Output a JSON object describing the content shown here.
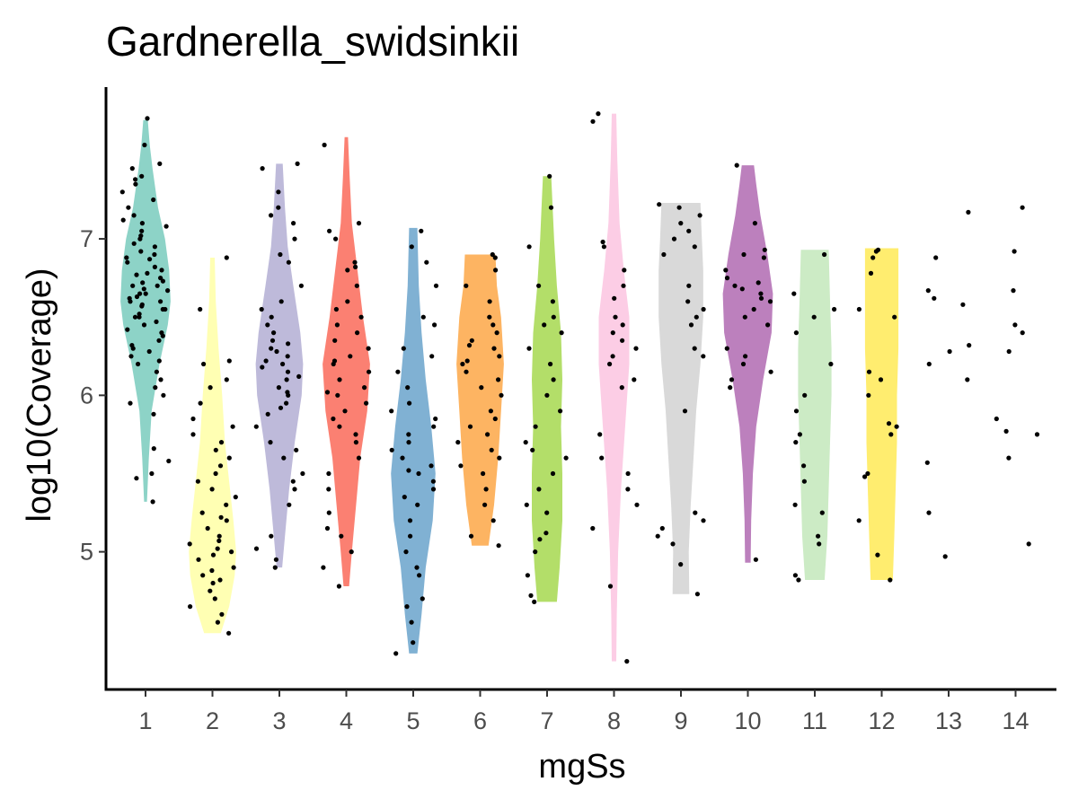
{
  "chart_data": {
    "type": "violin",
    "title": "Gardnerella_swidsinkii",
    "xlabel": "mgSs",
    "ylabel": "log10(Coverage)",
    "ylim": [
      4.12,
      7.97
    ],
    "yticks": [
      5,
      6,
      7
    ],
    "grid": false,
    "legend": "none",
    "categories": [
      "1",
      "2",
      "3",
      "4",
      "5",
      "6",
      "7",
      "8",
      "9",
      "10",
      "11",
      "12",
      "13",
      "14"
    ],
    "series": [
      {
        "category": "1",
        "color": "#8DD3C7",
        "violin": true,
        "profile": [
          [
            5.32,
            0.05
          ],
          [
            5.6,
            0.12
          ],
          [
            5.9,
            0.22
          ],
          [
            6.2,
            0.5
          ],
          [
            6.45,
            0.8
          ],
          [
            6.6,
            0.9
          ],
          [
            6.8,
            0.85
          ],
          [
            7.0,
            0.7
          ],
          [
            7.2,
            0.45
          ],
          [
            7.45,
            0.25
          ],
          [
            7.6,
            0.15
          ],
          [
            7.76,
            0.08
          ]
        ],
        "points": [
          5.32,
          5.47,
          5.5,
          5.58,
          5.66,
          5.88,
          5.95,
          6.0,
          6.05,
          6.1,
          6.15,
          6.2,
          6.22,
          6.25,
          6.28,
          6.3,
          6.32,
          6.35,
          6.38,
          6.4,
          6.42,
          6.45,
          6.47,
          6.5,
          6.5,
          6.52,
          6.55,
          6.55,
          6.57,
          6.58,
          6.6,
          6.6,
          6.62,
          6.63,
          6.65,
          6.65,
          6.67,
          6.68,
          6.7,
          6.7,
          6.72,
          6.73,
          6.75,
          6.77,
          6.78,
          6.8,
          6.82,
          6.85,
          6.87,
          6.88,
          6.9,
          6.92,
          6.95,
          6.97,
          7.0,
          7.02,
          7.05,
          7.08,
          7.1,
          7.12,
          7.15,
          7.2,
          7.25,
          7.3,
          7.35,
          7.38,
          7.4,
          7.45,
          7.48,
          7.6,
          7.77
        ]
      },
      {
        "category": "2",
        "color": "#FFFFB3",
        "violin": true,
        "profile": [
          [
            4.48,
            0.3
          ],
          [
            4.65,
            0.6
          ],
          [
            4.85,
            0.8
          ],
          [
            5.0,
            0.85
          ],
          [
            5.2,
            0.75
          ],
          [
            5.45,
            0.6
          ],
          [
            5.7,
            0.45
          ],
          [
            6.0,
            0.35
          ],
          [
            6.3,
            0.22
          ],
          [
            6.6,
            0.12
          ],
          [
            6.88,
            0.08
          ]
        ],
        "points": [
          4.48,
          4.55,
          4.6,
          4.65,
          4.7,
          4.75,
          4.8,
          4.82,
          4.85,
          4.88,
          4.9,
          4.95,
          4.98,
          5.0,
          5.02,
          5.05,
          5.07,
          5.1,
          5.15,
          5.2,
          5.22,
          5.25,
          5.3,
          5.35,
          5.4,
          5.45,
          5.5,
          5.55,
          5.6,
          5.65,
          5.7,
          5.75,
          5.8,
          5.85,
          5.95,
          6.05,
          6.1,
          6.2,
          6.22,
          6.55,
          6.88
        ]
      },
      {
        "category": "3",
        "color": "#BEBADA",
        "violin": true,
        "profile": [
          [
            4.9,
            0.1
          ],
          [
            5.1,
            0.2
          ],
          [
            5.4,
            0.35
          ],
          [
            5.7,
            0.55
          ],
          [
            6.0,
            0.8
          ],
          [
            6.2,
            0.85
          ],
          [
            6.4,
            0.75
          ],
          [
            6.7,
            0.5
          ],
          [
            6.95,
            0.3
          ],
          [
            7.2,
            0.2
          ],
          [
            7.48,
            0.12
          ]
        ],
        "points": [
          4.9,
          4.95,
          5.02,
          5.1,
          5.3,
          5.4,
          5.45,
          5.5,
          5.6,
          5.65,
          5.7,
          5.8,
          5.88,
          5.92,
          5.95,
          6.0,
          6.02,
          6.05,
          6.1,
          6.12,
          6.15,
          6.18,
          6.2,
          6.22,
          6.25,
          6.28,
          6.3,
          6.33,
          6.35,
          6.4,
          6.45,
          6.5,
          6.55,
          6.6,
          6.7,
          6.85,
          6.9,
          7.0,
          7.1,
          7.15,
          7.2,
          7.3,
          7.45,
          7.48
        ]
      },
      {
        "category": "4",
        "color": "#FB8072",
        "violin": true,
        "profile": [
          [
            4.78,
            0.1
          ],
          [
            5.0,
            0.2
          ],
          [
            5.3,
            0.35
          ],
          [
            5.6,
            0.5
          ],
          [
            5.9,
            0.75
          ],
          [
            6.2,
            0.85
          ],
          [
            6.5,
            0.6
          ],
          [
            6.8,
            0.4
          ],
          [
            7.1,
            0.2
          ],
          [
            7.4,
            0.12
          ],
          [
            7.65,
            0.06
          ]
        ],
        "points": [
          4.78,
          4.9,
          5.0,
          5.1,
          5.15,
          5.25,
          5.4,
          5.5,
          5.6,
          5.7,
          5.75,
          5.8,
          5.85,
          5.9,
          5.95,
          6.0,
          6.02,
          6.05,
          6.1,
          6.15,
          6.2,
          6.22,
          6.25,
          6.3,
          6.35,
          6.4,
          6.45,
          6.5,
          6.55,
          6.6,
          6.7,
          6.8,
          6.82,
          6.85,
          7.0,
          7.05,
          7.1,
          7.6
        ]
      },
      {
        "category": "5",
        "color": "#80B1D3",
        "violin": true,
        "profile": [
          [
            4.35,
            0.15
          ],
          [
            4.6,
            0.3
          ],
          [
            4.9,
            0.45
          ],
          [
            5.2,
            0.7
          ],
          [
            5.5,
            0.8
          ],
          [
            5.8,
            0.65
          ],
          [
            6.1,
            0.45
          ],
          [
            6.4,
            0.3
          ],
          [
            6.7,
            0.2
          ],
          [
            7.07,
            0.15
          ]
        ],
        "points": [
          4.35,
          4.42,
          4.55,
          4.65,
          4.7,
          4.85,
          4.9,
          5.0,
          5.1,
          5.2,
          5.3,
          5.35,
          5.4,
          5.45,
          5.5,
          5.52,
          5.55,
          5.6,
          5.65,
          5.7,
          5.75,
          5.8,
          5.85,
          5.9,
          5.95,
          6.05,
          6.15,
          6.25,
          6.3,
          6.45,
          6.5,
          6.7,
          6.85,
          6.95,
          7.05
        ]
      },
      {
        "category": "6",
        "color": "#FDB462",
        "violin": true,
        "profile": [
          [
            5.04,
            0.3
          ],
          [
            5.3,
            0.5
          ],
          [
            5.6,
            0.65
          ],
          [
            5.9,
            0.75
          ],
          [
            6.2,
            0.85
          ],
          [
            6.5,
            0.75
          ],
          [
            6.7,
            0.6
          ],
          [
            6.9,
            0.55
          ]
        ],
        "points": [
          5.04,
          5.1,
          5.2,
          5.3,
          5.4,
          5.5,
          5.55,
          5.6,
          5.65,
          5.7,
          5.75,
          5.8,
          5.85,
          5.9,
          6.0,
          6.05,
          6.1,
          6.15,
          6.2,
          6.22,
          6.25,
          6.3,
          6.32,
          6.35,
          6.4,
          6.45,
          6.5,
          6.6,
          6.7,
          6.8,
          6.88,
          6.9
        ]
      },
      {
        "category": "7",
        "color": "#B3DE69",
        "violin": true,
        "profile": [
          [
            4.68,
            0.35
          ],
          [
            4.9,
            0.45
          ],
          [
            5.2,
            0.55
          ],
          [
            5.5,
            0.55
          ],
          [
            5.8,
            0.5
          ],
          [
            6.1,
            0.55
          ],
          [
            6.4,
            0.5
          ],
          [
            6.7,
            0.35
          ],
          [
            7.0,
            0.25
          ],
          [
            7.2,
            0.2
          ],
          [
            7.4,
            0.15
          ]
        ],
        "points": [
          4.68,
          4.72,
          4.85,
          5.0,
          5.08,
          5.12,
          5.25,
          5.3,
          5.4,
          5.5,
          5.6,
          5.65,
          5.7,
          5.8,
          5.9,
          6.0,
          6.1,
          6.2,
          6.3,
          6.4,
          6.45,
          6.5,
          6.6,
          6.7,
          6.95,
          7.2,
          7.4
        ]
      },
      {
        "category": "8",
        "color": "#FCCDE5",
        "violin": true,
        "profile": [
          [
            4.3,
            0.08
          ],
          [
            4.6,
            0.1
          ],
          [
            5.0,
            0.15
          ],
          [
            5.4,
            0.25
          ],
          [
            5.8,
            0.4
          ],
          [
            6.2,
            0.55
          ],
          [
            6.5,
            0.55
          ],
          [
            6.8,
            0.35
          ],
          [
            7.1,
            0.2
          ],
          [
            7.5,
            0.12
          ],
          [
            7.8,
            0.08
          ]
        ],
        "points": [
          4.3,
          4.78,
          5.15,
          5.3,
          5.4,
          5.5,
          5.6,
          5.75,
          6.05,
          6.1,
          6.2,
          6.25,
          6.3,
          6.35,
          6.4,
          6.45,
          6.5,
          6.62,
          6.7,
          6.8,
          6.95,
          6.98,
          7.75,
          7.8
        ]
      },
      {
        "category": "9",
        "color": "#D9D9D9",
        "violin": true,
        "profile": [
          [
            4.73,
            0.3
          ],
          [
            5.0,
            0.28
          ],
          [
            5.3,
            0.35
          ],
          [
            5.6,
            0.45
          ],
          [
            5.9,
            0.55
          ],
          [
            6.2,
            0.7
          ],
          [
            6.5,
            0.8
          ],
          [
            6.8,
            0.8
          ],
          [
            7.0,
            0.75
          ],
          [
            7.23,
            0.7
          ]
        ],
        "points": [
          4.73,
          4.92,
          5.05,
          5.1,
          5.15,
          5.2,
          5.25,
          5.9,
          6.25,
          6.3,
          6.45,
          6.5,
          6.55,
          6.6,
          6.7,
          6.9,
          6.95,
          7.0,
          7.05,
          7.1,
          7.15,
          7.2,
          7.22
        ]
      },
      {
        "category": "10",
        "color": "#BC80BD",
        "violin": true,
        "profile": [
          [
            4.93,
            0.1
          ],
          [
            5.2,
            0.12
          ],
          [
            5.5,
            0.18
          ],
          [
            5.8,
            0.3
          ],
          [
            6.1,
            0.55
          ],
          [
            6.4,
            0.85
          ],
          [
            6.65,
            0.9
          ],
          [
            6.9,
            0.7
          ],
          [
            7.15,
            0.45
          ],
          [
            7.35,
            0.3
          ],
          [
            7.47,
            0.22
          ]
        ],
        "points": [
          4.95,
          6.05,
          6.1,
          6.15,
          6.2,
          6.25,
          6.3,
          6.45,
          6.5,
          6.55,
          6.6,
          6.62,
          6.65,
          6.68,
          6.7,
          6.72,
          6.75,
          6.8,
          6.88,
          6.9,
          6.93,
          7.1,
          7.47
        ]
      },
      {
        "category": "11",
        "color": "#CCEBC5",
        "violin": true,
        "profile": [
          [
            4.82,
            0.35
          ],
          [
            5.1,
            0.45
          ],
          [
            5.4,
            0.5
          ],
          [
            5.7,
            0.55
          ],
          [
            6.0,
            0.6
          ],
          [
            6.3,
            0.6
          ],
          [
            6.6,
            0.55
          ],
          [
            6.93,
            0.5
          ]
        ],
        "points": [
          4.82,
          4.85,
          5.05,
          5.1,
          5.25,
          5.3,
          5.45,
          5.55,
          5.7,
          5.75,
          5.9,
          6.0,
          6.2,
          6.4,
          6.5,
          6.55,
          6.65,
          6.9
        ]
      },
      {
        "category": "12",
        "color": "#FFED6F",
        "violin": true,
        "profile": [
          [
            4.82,
            0.4
          ],
          [
            5.1,
            0.45
          ],
          [
            5.4,
            0.5
          ],
          [
            5.7,
            0.55
          ],
          [
            6.0,
            0.55
          ],
          [
            6.3,
            0.6
          ],
          [
            6.6,
            0.6
          ],
          [
            6.94,
            0.6
          ]
        ],
        "points": [
          4.82,
          4.98,
          5.2,
          5.48,
          5.5,
          5.75,
          5.8,
          5.82,
          6.0,
          6.1,
          6.15,
          6.5,
          6.55,
          6.78,
          6.88,
          6.92,
          6.93
        ]
      },
      {
        "category": "13",
        "color": "#ffffff",
        "violin": false,
        "points": [
          4.97,
          5.25,
          5.57,
          6.1,
          6.2,
          6.28,
          6.32,
          6.58,
          6.62,
          6.67,
          6.88,
          7.17
        ]
      },
      {
        "category": "14",
        "color": "#ffffff",
        "violin": false,
        "points": [
          5.05,
          5.6,
          5.75,
          5.77,
          5.85,
          6.28,
          6.4,
          6.45,
          6.67,
          6.92,
          7.2
        ]
      }
    ]
  }
}
